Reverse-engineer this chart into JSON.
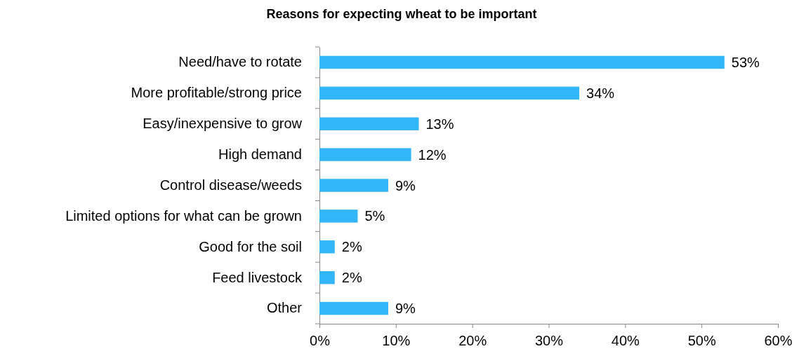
{
  "chart_data": {
    "type": "bar",
    "orientation": "horizontal",
    "title": "Reasons for expecting wheat to be important",
    "categories": [
      "Need/have to rotate",
      "More profitable/strong price",
      "Easy/inexpensive to grow",
      "High demand",
      "Control disease/weeds",
      "Limited options for what can be grown",
      "Good for the soil",
      "Feed livestock",
      "Other"
    ],
    "values": [
      53,
      34,
      13,
      12,
      9,
      5,
      2,
      2,
      9
    ],
    "value_labels": [
      "53%",
      "34%",
      "13%",
      "12%",
      "9%",
      "5%",
      "2%",
      "2%",
      "9%"
    ],
    "color": "#33b5fa",
    "xlim": [
      0,
      60
    ],
    "xticks": [
      {
        "value": 0,
        "label": "0%"
      },
      {
        "value": 10,
        "label": "10%"
      },
      {
        "value": 20,
        "label": "20%"
      },
      {
        "value": 30,
        "label": "30%"
      },
      {
        "value": 40,
        "label": "40%"
      },
      {
        "value": 50,
        "label": "50%"
      },
      {
        "value": 60,
        "label": "60%"
      }
    ],
    "grid": false
  }
}
